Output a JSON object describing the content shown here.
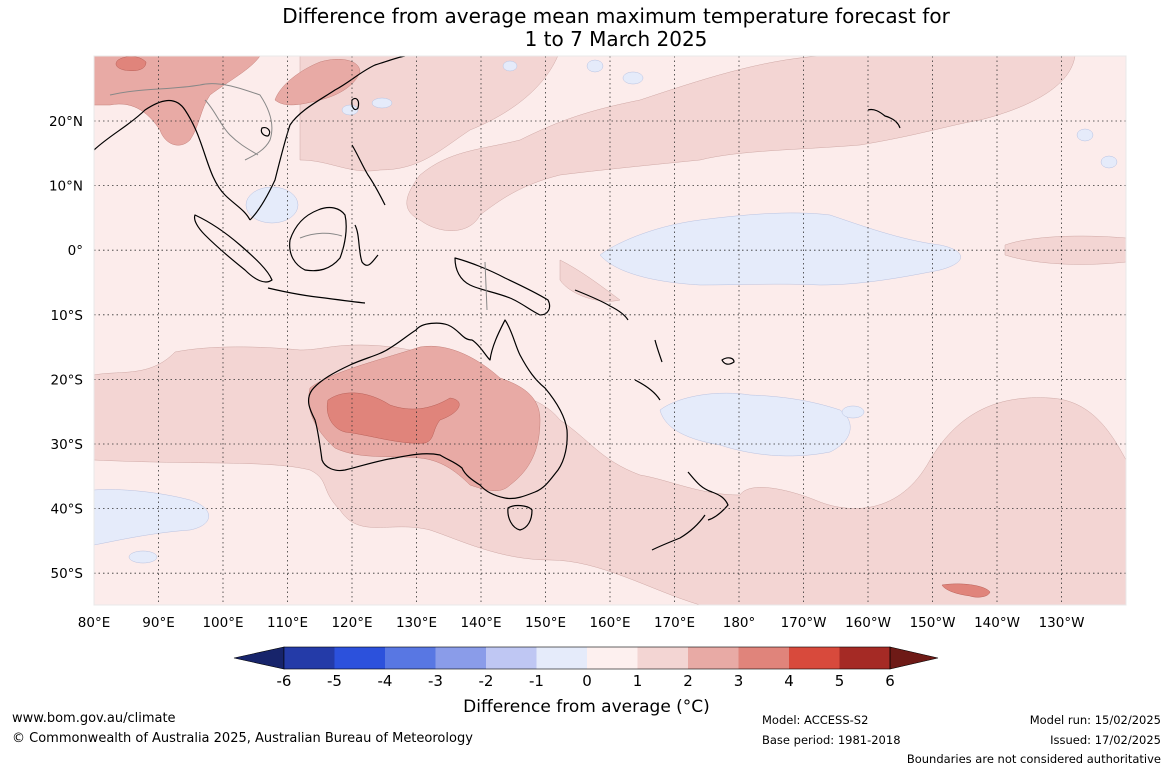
{
  "title": {
    "line1": "Difference from average mean maximum temperature forecast for",
    "line2": "1 to 7 March 2025"
  },
  "map": {
    "lat_labels": [
      "20°N",
      "10°N",
      "0°",
      "10°S",
      "20°S",
      "30°S",
      "40°S",
      "50°S"
    ],
    "lon_labels": [
      "80°E",
      "90°E",
      "100°E",
      "110°E",
      "120°E",
      "130°E",
      "140°E",
      "150°E",
      "160°E",
      "170°E",
      "180°",
      "170°W",
      "160°W",
      "150°W",
      "140°W",
      "130°W"
    ],
    "gridlines": "dotted",
    "anomaly_regions": [
      {
        "name": "Western and central Australia",
        "anomaly_bin": "2 to 3",
        "color": "#e8aaa5"
      },
      {
        "name": "Central Western Australia core",
        "anomaly_bin": "3 to 4",
        "color": "#e0847b"
      },
      {
        "name": "Southern Australia and Tasman Sea",
        "anomaly_bin": "1 to 2",
        "color": "#f3d5d3"
      },
      {
        "name": "Southern China",
        "anomaly_bin": "2 to 3",
        "color": "#e8aaa5"
      },
      {
        "name": "Equatorial central Pacific",
        "anomaly_bin": "-1 to 0",
        "color": "#e5ebfa"
      },
      {
        "name": "Southwest Pacific",
        "anomaly_bin": "-1 to 0",
        "color": "#e5ebfa"
      },
      {
        "name": "Southern Indian Ocean",
        "anomaly_bin": "-1 to 0",
        "color": "#e5ebfa"
      },
      {
        "name": "Eastern South Pacific",
        "anomaly_bin": "1 to 2",
        "color": "#f3d5d3"
      }
    ]
  },
  "colorbar": {
    "ticks": [
      "-6",
      "-5",
      "-4",
      "-3",
      "-2",
      "-1",
      "0",
      "1",
      "2",
      "3",
      "4",
      "5",
      "6"
    ],
    "colors": [
      "#243ba8",
      "#2c51dc",
      "#5877e3",
      "#8a9ce9",
      "#bfc7f3",
      "#e5ebfa",
      "#fdf0ef",
      "#f3d5d3",
      "#e8aaa5",
      "#e0847b",
      "#d84a3c",
      "#a52a25"
    ],
    "low_extend_color": "#17246b",
    "high_extend_color": "#6e1a16",
    "label": "Difference from average (°C)"
  },
  "footer": {
    "website": "www.bom.gov.au/climate",
    "copyright": "© Commonwealth of Australia 2025, Australian Bureau of Meteorology",
    "model": "Model: ACCESS-S2",
    "base_period": "Base period: 1981-2018",
    "model_run": "Model run: 15/02/2025",
    "issued": "Issued: 17/02/2025",
    "disclaimer": "Boundaries are not considered authoritative"
  }
}
